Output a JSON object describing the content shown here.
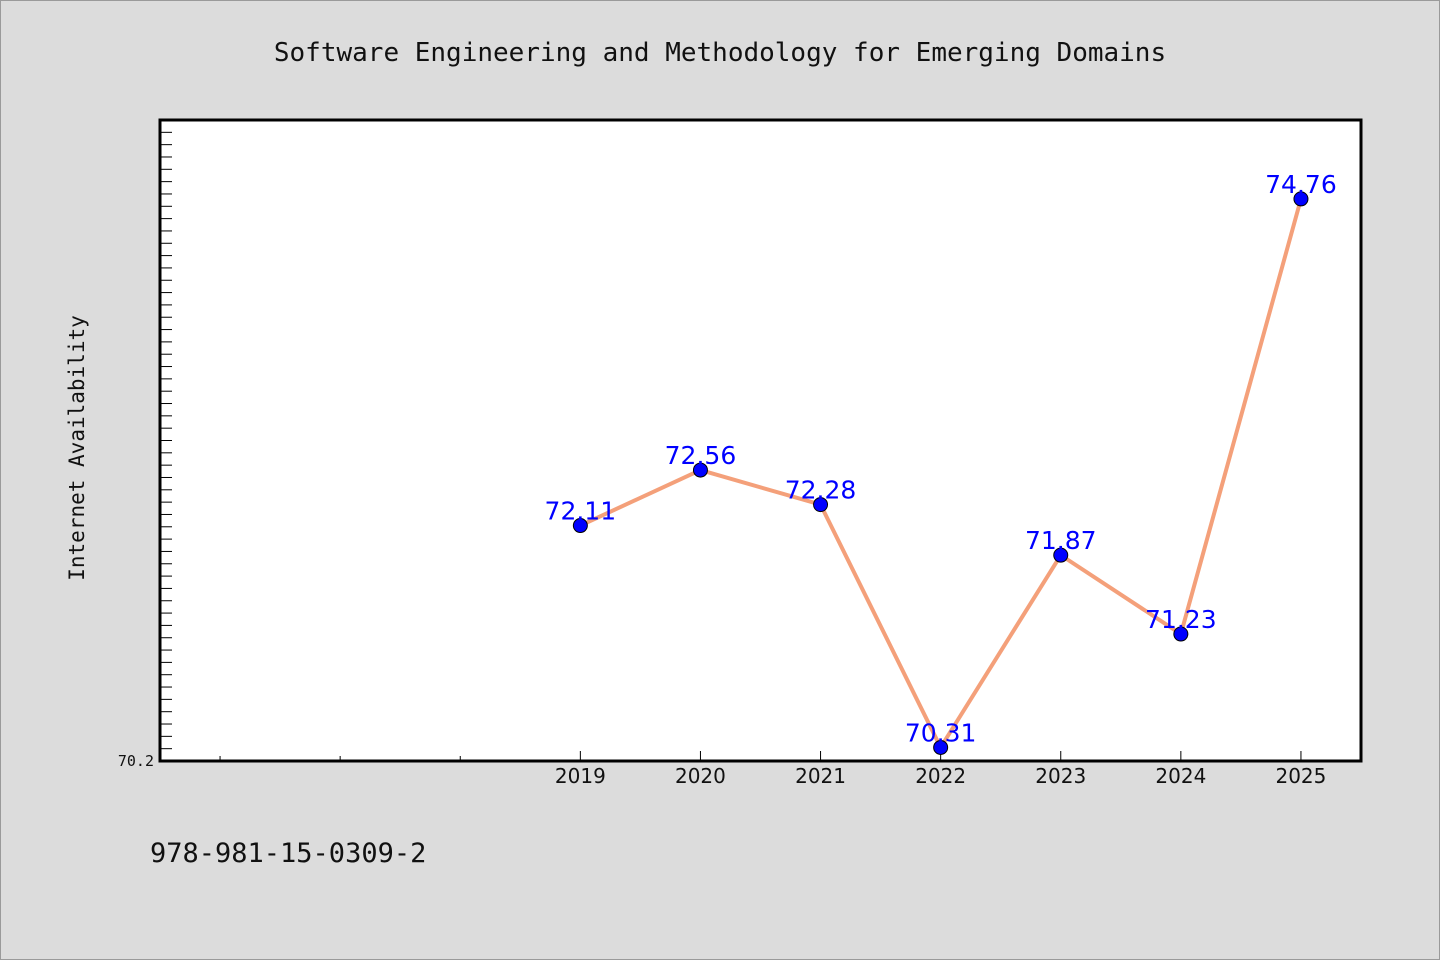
{
  "chart_data": {
    "type": "line",
    "title": "Software Engineering and Methodology for Emerging Domains",
    "ylabel": "Internet Availability",
    "xlabel": "",
    "categories": [
      "2019",
      "2020",
      "2021",
      "2022",
      "2023",
      "2024",
      "2025"
    ],
    "series": [
      {
        "values": [
          72.11,
          72.56,
          72.28,
          70.31,
          71.87,
          71.23,
          74.76
        ]
      }
    ],
    "data_labels": [
      "72.11",
      "72.56",
      "72.28",
      "70.31",
      "71.87",
      "71.23",
      "74.76"
    ],
    "y_tick_labels": [
      "70.2"
    ],
    "ylim": [
      70.2,
      75.4
    ],
    "xlim": [
      2015.5,
      2025.5
    ],
    "grid": false,
    "line_color": "#f4a07a",
    "marker_color": "#0000ff",
    "label_color": "#0000ff"
  },
  "footer": {
    "isbn": "978-981-15-0309-2"
  }
}
